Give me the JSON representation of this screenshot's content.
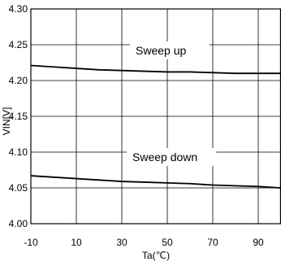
{
  "chart_data": {
    "type": "line",
    "xlabel": "Ta(℃)",
    "ylabel": "VIN[V]",
    "xlim": [
      -10,
      100
    ],
    "ylim": [
      4.0,
      4.3
    ],
    "x_ticks": [
      "-10",
      "10",
      "30",
      "50",
      "70",
      "90"
    ],
    "y_ticks": [
      "4.00",
      "4.05",
      "4.10",
      "4.15",
      "4.20",
      "4.25",
      "4.30"
    ],
    "grid": true,
    "annotations": [
      "Sweep up",
      "Sweep down"
    ],
    "series": [
      {
        "name": "Sweep up",
        "x": [
          -10,
          0,
          10,
          20,
          30,
          40,
          50,
          60,
          70,
          80,
          90,
          100
        ],
        "y": [
          4.221,
          4.219,
          4.217,
          4.215,
          4.214,
          4.213,
          4.212,
          4.212,
          4.211,
          4.21,
          4.21,
          4.21
        ]
      },
      {
        "name": "Sweep down",
        "x": [
          -10,
          0,
          10,
          20,
          30,
          40,
          50,
          60,
          70,
          80,
          90,
          100
        ],
        "y": [
          4.067,
          4.065,
          4.063,
          4.061,
          4.059,
          4.058,
          4.057,
          4.056,
          4.054,
          4.053,
          4.052,
          4.05
        ]
      }
    ]
  }
}
